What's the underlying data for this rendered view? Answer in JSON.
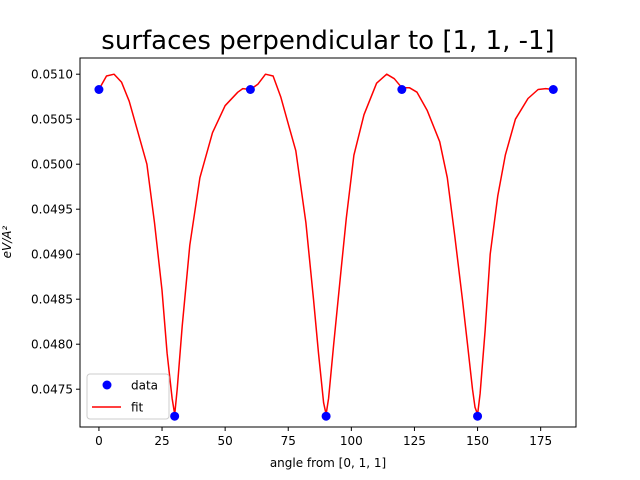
{
  "chart_data": {
    "type": "line",
    "title": "surfaces perpendicular to [1, 1, -1]",
    "xlabel": "angle from [0, 1, 1]",
    "ylabel": "eV/A²",
    "xlim": [
      -7.5,
      189
    ],
    "ylim": [
      0.04708,
      0.05118
    ],
    "x_ticks": [
      0,
      25,
      50,
      75,
      100,
      125,
      150,
      175
    ],
    "x_tick_labels": [
      "0",
      "25",
      "50",
      "75",
      "100",
      "125",
      "150",
      "175"
    ],
    "y_ticks": [
      0.0475,
      0.048,
      0.0485,
      0.049,
      0.0495,
      0.05,
      0.0505,
      0.051
    ],
    "y_tick_labels": [
      "0.0475",
      "0.0480",
      "0.0485",
      "0.0490",
      "0.0495",
      "0.0500",
      "0.0505",
      "0.0510"
    ],
    "grid": false,
    "legend_position": "lower-left",
    "series": [
      {
        "name": "data",
        "style": "markers",
        "color": "#0000ff",
        "x": [
          0,
          30,
          60,
          90,
          120,
          150,
          180
        ],
        "y": [
          0.05083,
          0.0472,
          0.05083,
          0.0472,
          0.05083,
          0.0472,
          0.05083
        ]
      },
      {
        "name": "fit",
        "style": "line",
        "color": "#ff0000",
        "x": [
          0,
          3,
          6,
          9,
          12,
          15,
          19,
          22,
          25,
          27,
          29,
          30,
          31,
          33,
          36,
          40,
          45,
          50,
          55,
          57,
          60,
          63,
          66,
          69,
          72,
          75,
          78,
          82,
          85,
          87,
          89,
          90,
          91,
          93,
          96,
          98,
          101,
          105,
          110,
          114,
          117,
          120,
          123,
          126,
          130,
          135,
          138,
          141,
          144,
          146,
          148,
          149,
          150,
          151,
          153,
          155,
          158,
          161,
          165,
          170,
          174,
          177,
          180
        ],
        "y": [
          0.05083,
          0.05098,
          0.051,
          0.05091,
          0.0507,
          0.0504,
          0.05,
          0.04935,
          0.0486,
          0.0479,
          0.0474,
          0.04722,
          0.0475,
          0.0482,
          0.0491,
          0.04985,
          0.05035,
          0.05065,
          0.0508,
          0.05084,
          0.05083,
          0.05089,
          0.051,
          0.05098,
          0.05075,
          0.05045,
          0.05015,
          0.04935,
          0.0485,
          0.0479,
          0.04735,
          0.04722,
          0.0474,
          0.048,
          0.04885,
          0.0494,
          0.0501,
          0.05055,
          0.0509,
          0.051,
          0.05095,
          0.05085,
          0.05085,
          0.0508,
          0.0506,
          0.05025,
          0.04985,
          0.0492,
          0.0485,
          0.048,
          0.0475,
          0.0473,
          0.04722,
          0.04745,
          0.04815,
          0.049,
          0.04965,
          0.0501,
          0.0505,
          0.05073,
          0.05083,
          0.05084,
          0.05083
        ]
      }
    ]
  }
}
